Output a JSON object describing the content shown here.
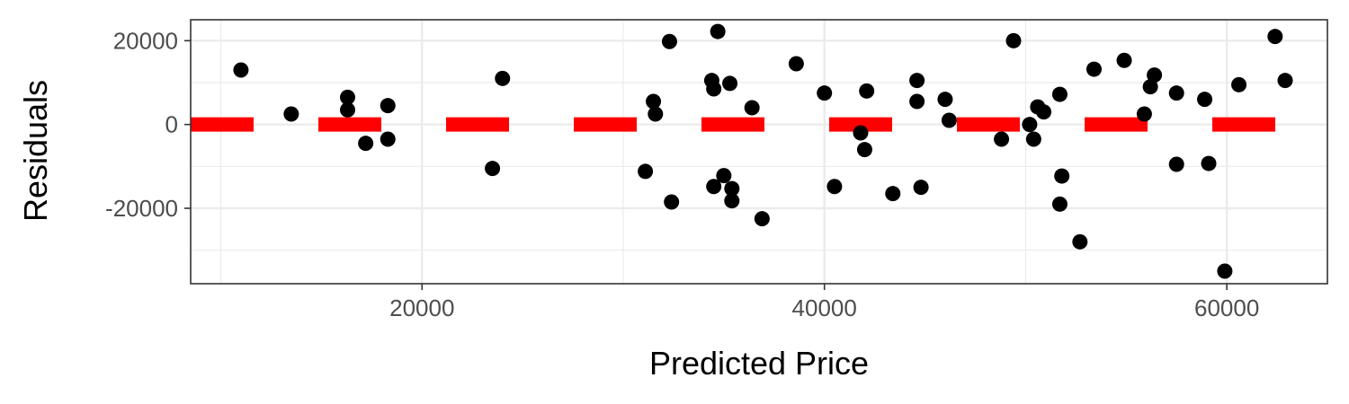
{
  "chart_data": {
    "type": "scatter",
    "title": "",
    "xlabel": "Predicted Price",
    "ylabel": "Residuals",
    "xlim": [
      8500,
      65000
    ],
    "ylim": [
      -38000,
      25000
    ],
    "x_ticks": [
      20000,
      40000,
      60000
    ],
    "x_tick_labels": [
      "20000",
      "40000",
      "60000"
    ],
    "y_ticks": [
      -20000,
      0,
      20000
    ],
    "y_tick_labels": [
      "-20000",
      "0",
      "20000"
    ],
    "grid": true,
    "legend": "none",
    "colors": {
      "points": "#000000",
      "zero_line": "#ff0000",
      "grid": "#ebebeb",
      "border": "#333333"
    },
    "zero_line": {
      "y": 0,
      "style": "dashed"
    },
    "points": [
      {
        "x": 11000,
        "y": 13000
      },
      {
        "x": 13500,
        "y": 2500
      },
      {
        "x": 16300,
        "y": 6500
      },
      {
        "x": 16300,
        "y": 3500
      },
      {
        "x": 17200,
        "y": -4500
      },
      {
        "x": 18300,
        "y": 4500
      },
      {
        "x": 18300,
        "y": -3500
      },
      {
        "x": 23500,
        "y": -10500
      },
      {
        "x": 24000,
        "y": 11000
      },
      {
        "x": 31100,
        "y": -11200
      },
      {
        "x": 31500,
        "y": 5500
      },
      {
        "x": 31600,
        "y": 2500
      },
      {
        "x": 32300,
        "y": 19800
      },
      {
        "x": 32400,
        "y": -18500
      },
      {
        "x": 34400,
        "y": 10500
      },
      {
        "x": 34500,
        "y": 8500
      },
      {
        "x": 34500,
        "y": -14800
      },
      {
        "x": 34700,
        "y": 22200
      },
      {
        "x": 35000,
        "y": -12200
      },
      {
        "x": 35300,
        "y": 9800
      },
      {
        "x": 35400,
        "y": -15300
      },
      {
        "x": 35400,
        "y": -18200
      },
      {
        "x": 36400,
        "y": 4000
      },
      {
        "x": 36900,
        "y": -22500
      },
      {
        "x": 38600,
        "y": 14500
      },
      {
        "x": 40000,
        "y": 7500
      },
      {
        "x": 40500,
        "y": -14800
      },
      {
        "x": 41800,
        "y": -2000
      },
      {
        "x": 42000,
        "y": -6000
      },
      {
        "x": 42100,
        "y": 8000
      },
      {
        "x": 43400,
        "y": -16500
      },
      {
        "x": 44600,
        "y": 10500
      },
      {
        "x": 44600,
        "y": 5500
      },
      {
        "x": 44800,
        "y": -15000
      },
      {
        "x": 46000,
        "y": 6000
      },
      {
        "x": 46200,
        "y": 1000
      },
      {
        "x": 48800,
        "y": -3500
      },
      {
        "x": 49400,
        "y": 20000
      },
      {
        "x": 50200,
        "y": 0
      },
      {
        "x": 50400,
        "y": -3500
      },
      {
        "x": 50600,
        "y": 4200
      },
      {
        "x": 50900,
        "y": 3000
      },
      {
        "x": 51700,
        "y": 7200
      },
      {
        "x": 51700,
        "y": -19000
      },
      {
        "x": 51800,
        "y": -12300
      },
      {
        "x": 52700,
        "y": -28000
      },
      {
        "x": 53400,
        "y": 13200
      },
      {
        "x": 54900,
        "y": 15300
      },
      {
        "x": 55900,
        "y": 2500
      },
      {
        "x": 56200,
        "y": 9000
      },
      {
        "x": 56400,
        "y": 11800
      },
      {
        "x": 57500,
        "y": 7500
      },
      {
        "x": 57500,
        "y": -9500
      },
      {
        "x": 58900,
        "y": 6000
      },
      {
        "x": 59100,
        "y": -9300
      },
      {
        "x": 59900,
        "y": -35000
      },
      {
        "x": 60600,
        "y": 9500
      },
      {
        "x": 62400,
        "y": 21000
      },
      {
        "x": 62900,
        "y": 10500
      }
    ]
  }
}
